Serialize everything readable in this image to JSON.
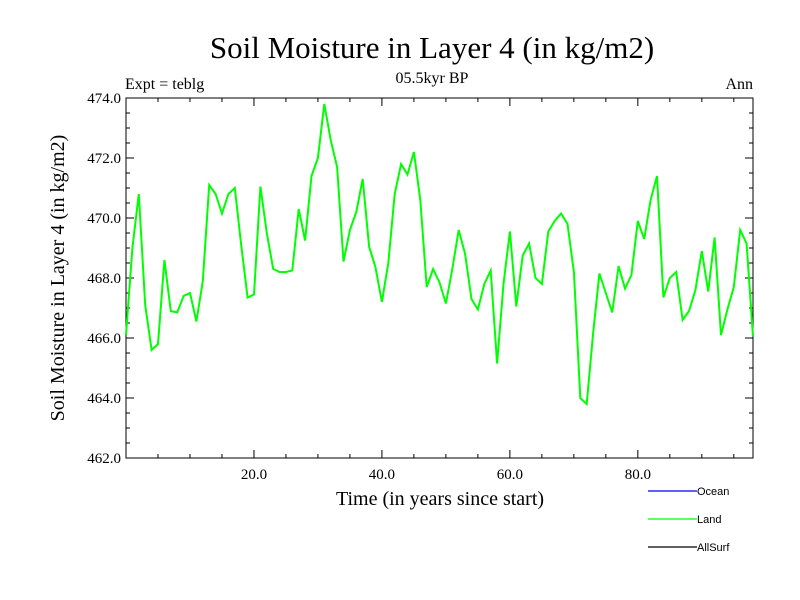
{
  "chart_data": {
    "type": "line",
    "title": "Soil Moisture in Layer 4 (in kg/m2)",
    "subtitle": "05.5kyr BP",
    "left_label": "Expt = teblg",
    "right_label": "Ann",
    "xlabel": "Time (in years since start)",
    "ylabel": "Soil Moisture in Layer 4 (in kg/m2)",
    "xlim": [
      0,
      98
    ],
    "ylim": [
      462,
      474
    ],
    "x_ticks": [
      20,
      40,
      60,
      80
    ],
    "x_tick_labels": [
      "20.0",
      "40.0",
      "60.0",
      "80.0"
    ],
    "y_ticks": [
      462,
      464,
      466,
      468,
      470,
      472,
      474
    ],
    "y_tick_labels": [
      "462.0",
      "464.0",
      "466.0",
      "468.0",
      "470.0",
      "472.0",
      "474.0"
    ],
    "legend": [
      {
        "name": "Ocean",
        "color": "#0000ff"
      },
      {
        "name": "Land",
        "color": "#00ff00"
      },
      {
        "name": "AllSurf",
        "color": "#000000"
      }
    ],
    "series": [
      {
        "name": "Land",
        "color": "#00ff00",
        "x": [
          0,
          1,
          2,
          3,
          4,
          5,
          6,
          7,
          8,
          9,
          10,
          11,
          12,
          13,
          14,
          15,
          16,
          17,
          18,
          19,
          20,
          21,
          22,
          23,
          24,
          25,
          26,
          27,
          28,
          29,
          30,
          31,
          32,
          33,
          34,
          35,
          36,
          37,
          38,
          39,
          40,
          41,
          42,
          43,
          44,
          45,
          46,
          47,
          48,
          49,
          50,
          51,
          52,
          53,
          54,
          55,
          56,
          57,
          58,
          59,
          60,
          61,
          62,
          63,
          64,
          65,
          66,
          67,
          68,
          69,
          70,
          71,
          72,
          73,
          74,
          75,
          76,
          77,
          78,
          79,
          80,
          81,
          82,
          83,
          84,
          85,
          86,
          87,
          88,
          89,
          90,
          91,
          92,
          93,
          94,
          95,
          96,
          97,
          98
        ],
        "values": [
          466.1,
          469.0,
          470.8,
          467.1,
          465.6,
          465.8,
          468.6,
          466.9,
          466.85,
          467.4,
          467.5,
          466.55,
          467.9,
          471.1,
          470.8,
          470.15,
          470.8,
          471.0,
          469.1,
          467.35,
          467.45,
          471.05,
          469.5,
          468.3,
          468.2,
          468.2,
          468.25,
          470.3,
          469.25,
          471.4,
          472.0,
          473.8,
          472.6,
          471.7,
          468.55,
          469.6,
          470.2,
          471.3,
          469.05,
          468.35,
          467.2,
          468.5,
          470.8,
          471.8,
          471.45,
          472.2,
          470.6,
          467.7,
          468.3,
          467.85,
          467.15,
          468.3,
          469.6,
          468.8,
          467.3,
          466.95,
          467.8,
          468.25,
          465.15,
          467.8,
          469.55,
          467.05,
          468.75,
          469.15,
          468.0,
          467.8,
          469.55,
          469.9,
          470.15,
          469.8,
          468.2,
          464.0,
          463.8,
          466.15,
          468.15,
          467.5,
          466.85,
          468.4,
          467.65,
          468.1,
          469.9,
          469.3,
          470.6,
          471.4,
          467.35,
          468.0,
          468.2,
          466.6,
          466.9,
          467.6,
          468.9,
          467.55,
          469.35,
          466.1,
          466.95,
          467.7,
          469.6,
          469.15,
          466.05
        ]
      }
    ]
  }
}
